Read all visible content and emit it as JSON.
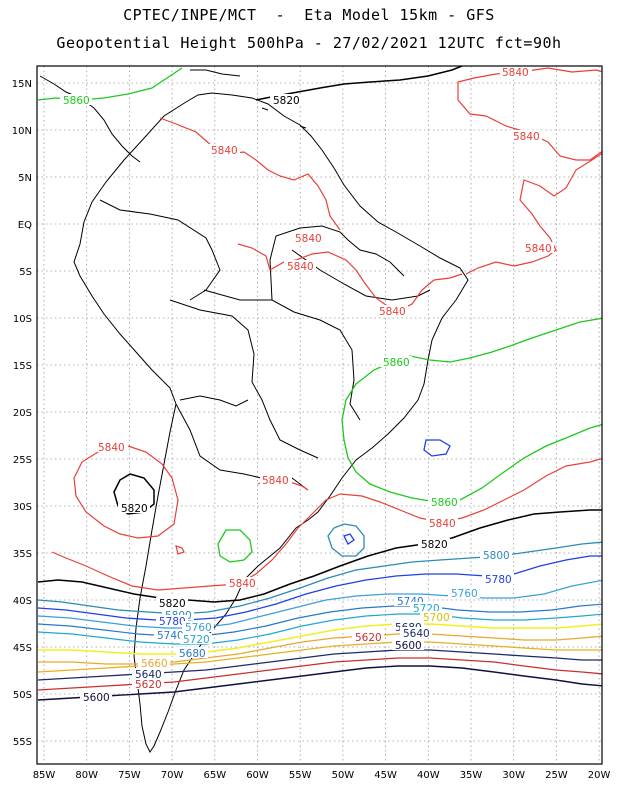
{
  "header": {
    "line1": "CPTEC/INPE/MCT  -  Eta Model 15km - GFS",
    "line2": "Geopotential Height 500hPa - 27/02/2021 12UTC fct=90h"
  },
  "axes": {
    "lon_ticks": [
      "85W",
      "80W",
      "75W",
      "70W",
      "65W",
      "60W",
      "55W",
      "50W",
      "45W",
      "40W",
      "35W",
      "30W",
      "25W",
      "20W"
    ],
    "lat_ticks": [
      "15N",
      "10N",
      "5N",
      "EQ",
      "5S",
      "10S",
      "15S",
      "20S",
      "25S",
      "30S",
      "35S",
      "40S",
      "45S",
      "50S",
      "55S"
    ]
  },
  "colors": {
    "c5840": "#e8403a",
    "c5860": "#1ec81e",
    "c5820": "#000000",
    "c5800": "#2a8cb4",
    "c5780": "#1f3fe6",
    "c5760": "#3aa0d8",
    "c5740": "#2a78c8",
    "c5720": "#20a8d0",
    "c5700": "#f0f020",
    "c5680": "#e8a830",
    "c5660": "#e8b020",
    "c5640": "#1a2a6a",
    "c5620": "#c83030",
    "c5600": "#101040"
  },
  "contour_labels": {
    "l5840_tr": "5840",
    "l5840_a": "5840",
    "l5840_b": "5840",
    "l5840_c": "5840",
    "l5840_d": "5840",
    "l5840_e": "5840",
    "l5840_f": "5840",
    "l5840_g": "5840",
    "l5840_h": "5840",
    "l5840_i": "5840",
    "l5840_j": "5840",
    "l5860_a": "5860",
    "l5860_b": "5860",
    "l5860_c": "5860",
    "l5820_a": "5820",
    "l5820_b": "5820",
    "l5820_c": "5820",
    "l5820_d": "5820",
    "l5800_a": "5800",
    "l5800_b": "5800",
    "l5780_a": "5780",
    "l5780_b": "5780",
    "l5760_a": "5760",
    "l5760_b": "5760",
    "l5740_a": "5740",
    "l5740_b": "5740",
    "l5720_a": "5720",
    "l5720_b": "5720",
    "l5700": "5700",
    "l5680_a": "5680",
    "l5680_b": "5680",
    "l5660": "5660",
    "l5640_a": "5640",
    "l5640_b": "5640",
    "l5620_a": "5620",
    "l5620_b": "5620",
    "l5600_a": "5600",
    "l5600_b": "5600"
  }
}
